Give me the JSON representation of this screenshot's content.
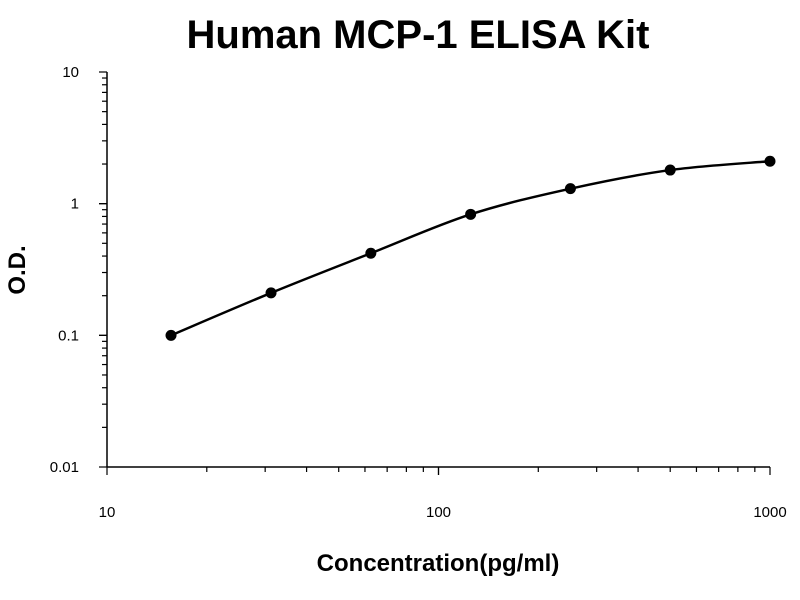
{
  "chart_data": {
    "type": "scatter",
    "title": "Human MCP-1 ELISA Kit",
    "xlabel": "Concentration(pg/ml)",
    "ylabel": "O.D.",
    "x_scale": "log",
    "y_scale": "log",
    "xlim": [
      10,
      1000
    ],
    "ylim": [
      0.01,
      10
    ],
    "x_ticks": [
      {
        "value": 10,
        "label": "10"
      },
      {
        "value": 100,
        "label": "100"
      },
      {
        "value": 1000,
        "label": "1000"
      }
    ],
    "y_ticks": [
      {
        "value": 10,
        "label": "10"
      },
      {
        "value": 1,
        "label": "1"
      },
      {
        "value": 0.1,
        "label": "0.1"
      },
      {
        "value": 0.01,
        "label": "0.01"
      }
    ],
    "grid": false,
    "legend": "none",
    "series": [
      {
        "x": [
          15.6,
          31.25,
          62.5,
          125,
          250,
          500,
          1000
        ],
        "y": [
          0.1,
          0.21,
          0.42,
          0.83,
          1.3,
          1.8,
          2.1
        ],
        "fit_line": true
      }
    ]
  },
  "colors": {
    "line": "#000000",
    "point": "#000000",
    "background": "#ffffff"
  }
}
